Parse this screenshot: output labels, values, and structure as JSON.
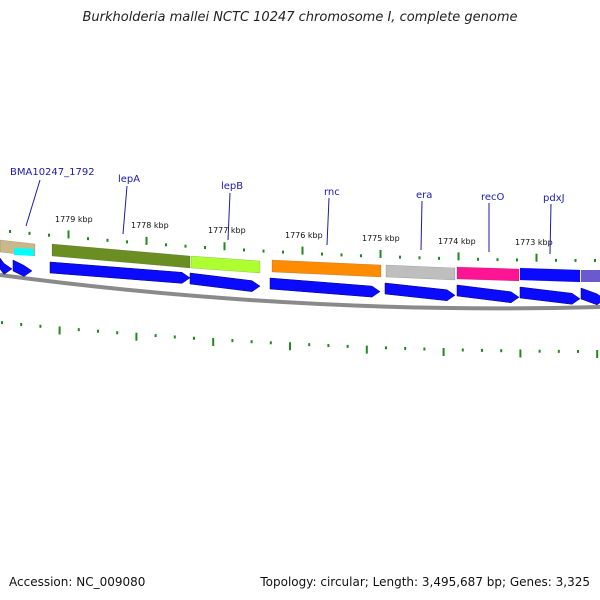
{
  "title": "Burkholderia mallei NCTC 10247 chromosome I, complete genome",
  "footer": {
    "accession": "Accession: NC_009080",
    "topology": "Topology: circular; Length: 3,495,687 bp; Genes: 3,325"
  },
  "colors": {
    "label": "#1a1ab0",
    "tick": "#1f8a1f",
    "cds": "#0a0aff",
    "backbone": "#8a8a8a"
  },
  "scale_labels": [
    "1779 kbp",
    "1778 kbp",
    "1777 kbp",
    "1776 kbp",
    "1775 kbp",
    "1774 kbp",
    "1773 kbp"
  ],
  "genes": [
    {
      "label": "BMA10247_1792",
      "color": "#c8b88a"
    },
    {
      "label": "lepA",
      "color": "#6b8e23"
    },
    {
      "label": "lepB",
      "color": "#adff2f"
    },
    {
      "label": "rnc",
      "color": "#ff8c00"
    },
    {
      "label": "era",
      "color": "#bebebe"
    },
    {
      "label": "recO",
      "color": "#ff1493"
    },
    {
      "label": "pdxJ",
      "color": "#0a0aff"
    }
  ],
  "unlabeled_features": [
    {
      "color": "#00ffff"
    },
    {
      "color": "#6a5acd"
    }
  ]
}
